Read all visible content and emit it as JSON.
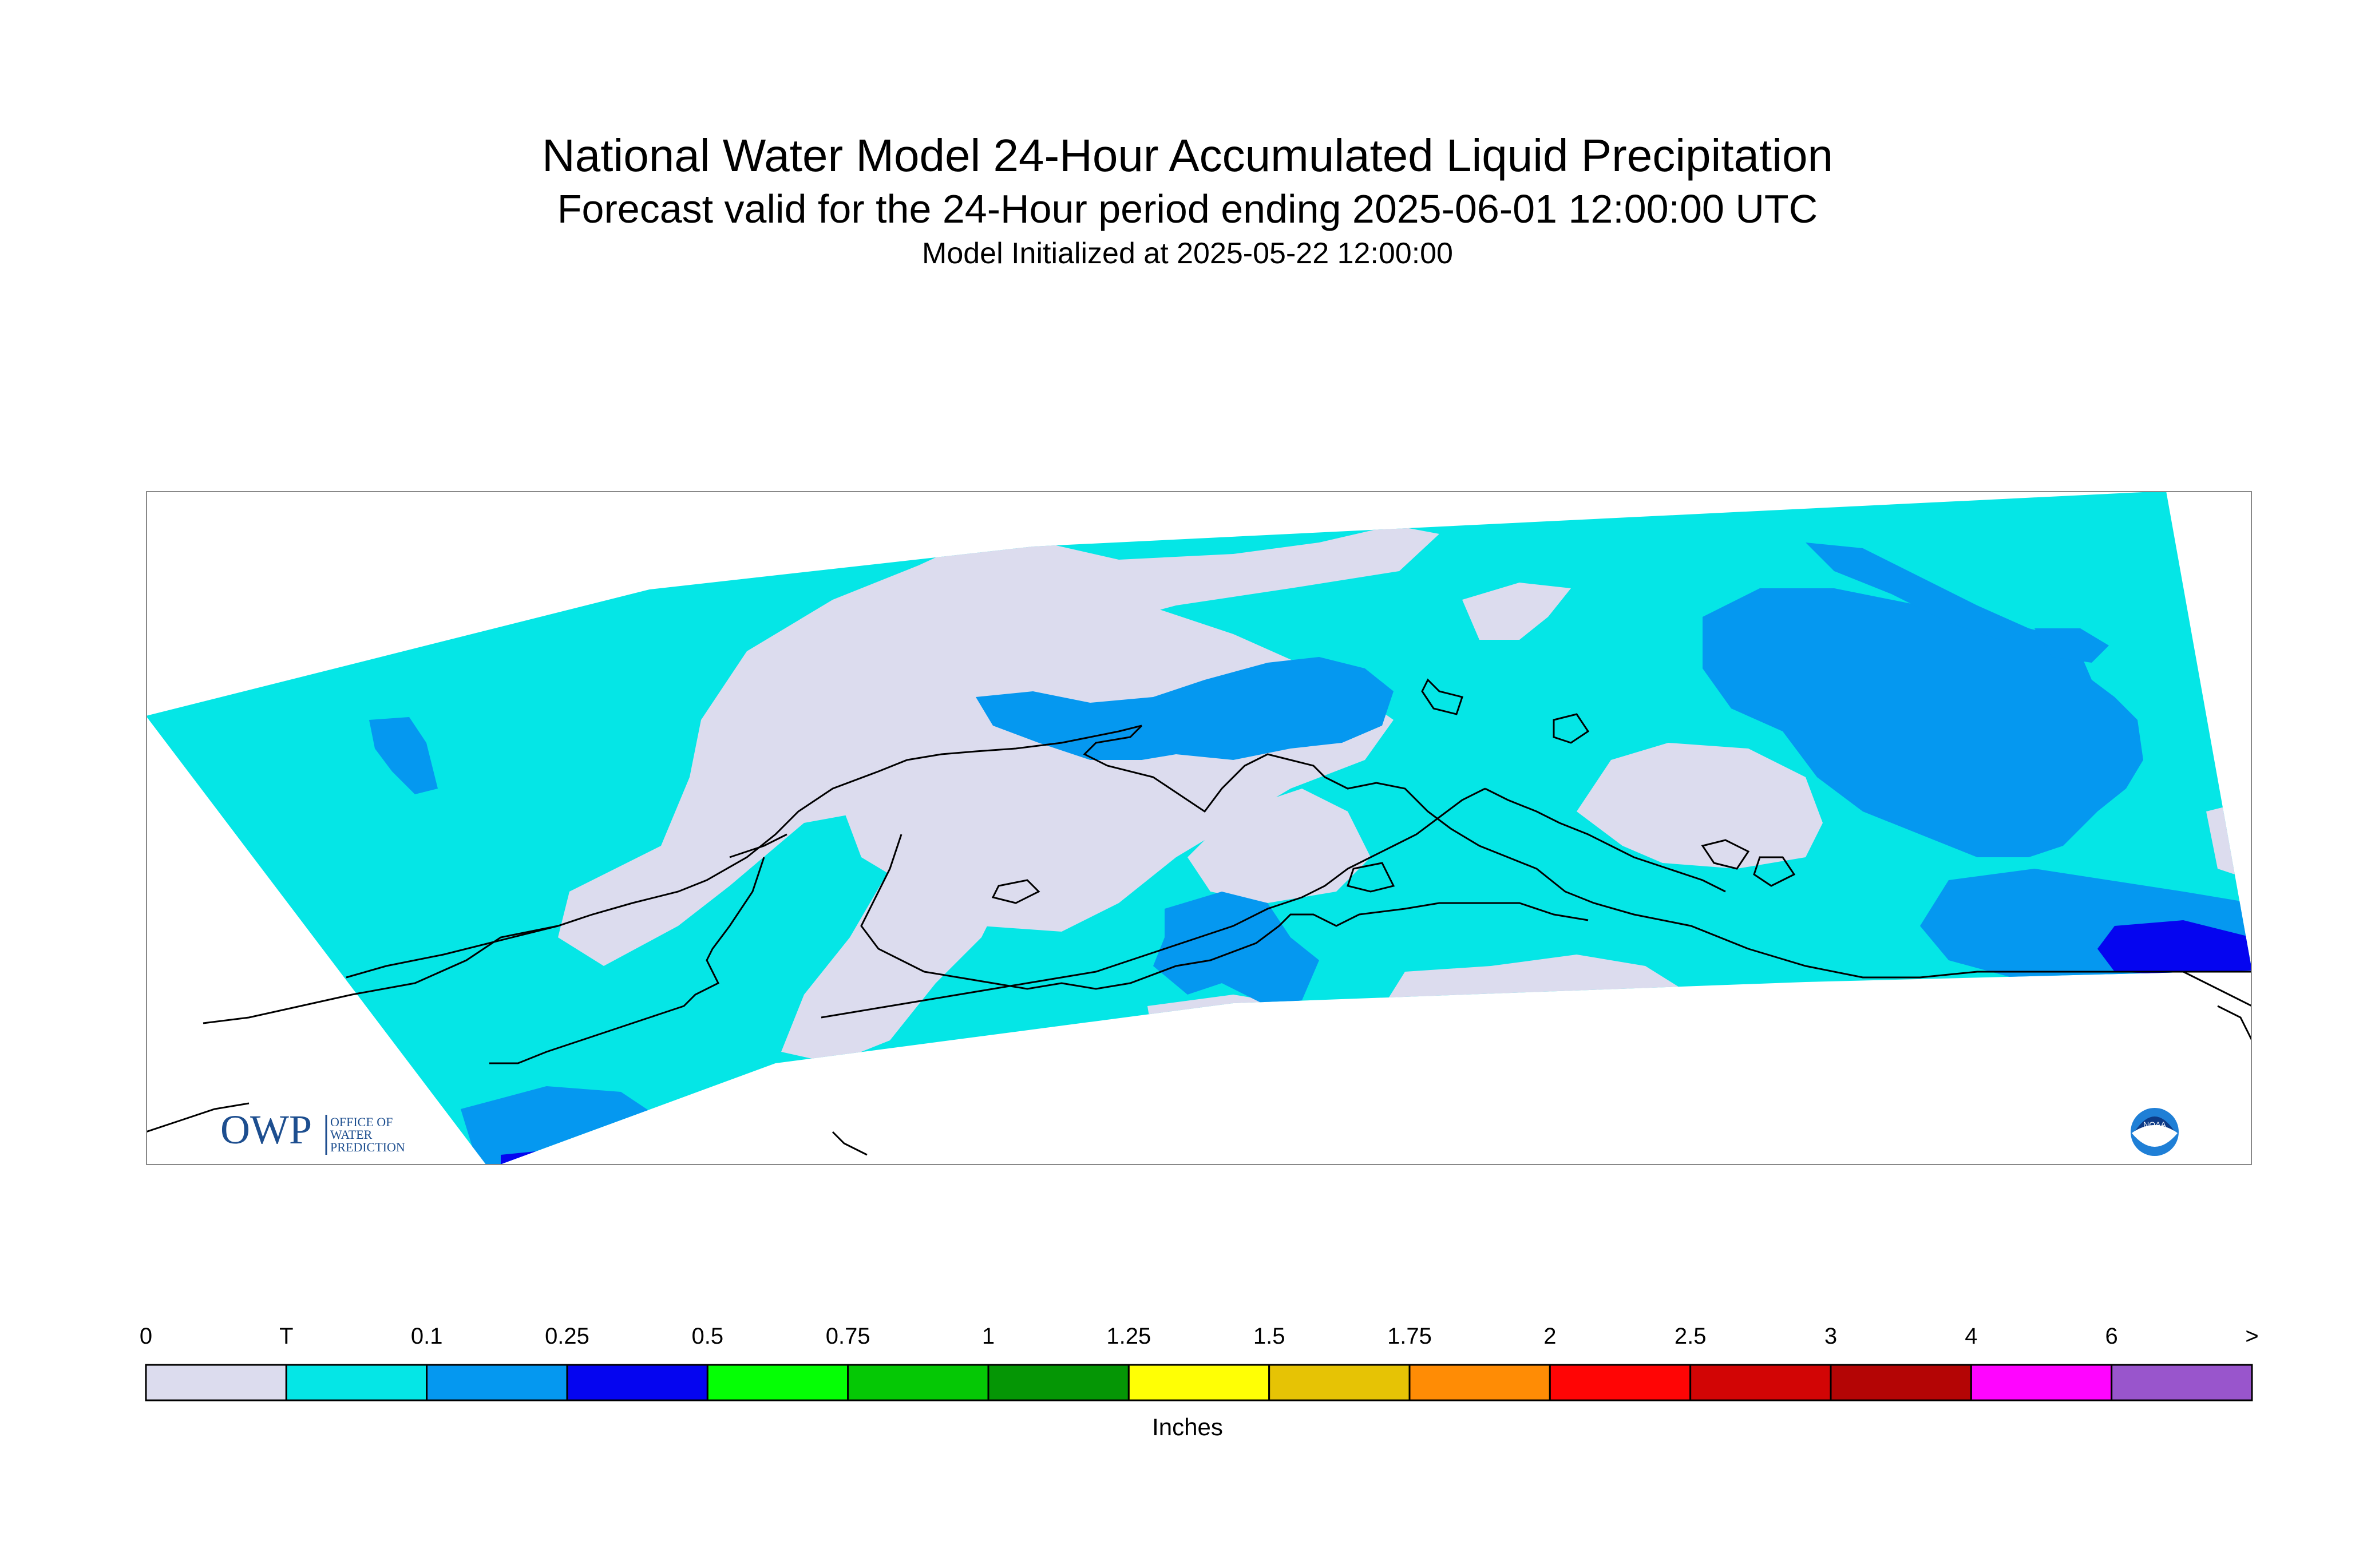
{
  "header": {
    "title": "National Water Model 24-Hour Accumulated Liquid Precipitation",
    "subtitle": "Forecast valid for the 24-Hour period ending 2025-06-01 12:00:00 UTC",
    "init_line": "Model Initialized at 2025-05-22 12:00:00"
  },
  "logos": {
    "owp_letters": "OWP",
    "owp_small": [
      "OFFICE OF",
      "WATER",
      "PREDICTION"
    ],
    "noaa_text": "NOAA"
  },
  "legend": {
    "units": "Inches",
    "labels": [
      "0",
      "T",
      "0.1",
      "0.25",
      "0.5",
      "0.75",
      "1",
      "1.25",
      "1.5",
      "1.75",
      "2",
      "2.5",
      "3",
      "4",
      "6",
      ">"
    ],
    "bins": [
      {
        "color": "#dcdcee"
      },
      {
        "color": "#05e6e6"
      },
      {
        "color": "#0598f0"
      },
      {
        "color": "#0505f0"
      },
      {
        "color": "#05ff05"
      },
      {
        "color": "#05c805"
      },
      {
        "color": "#059605"
      },
      {
        "color": "#ffff05"
      },
      {
        "color": "#e6c305"
      },
      {
        "color": "#ff8c05"
      },
      {
        "color": "#ff0505"
      },
      {
        "color": "#d20505"
      },
      {
        "color": "#b40505"
      },
      {
        "color": "#ff05ff"
      },
      {
        "color": "#9955cc"
      }
    ]
  },
  "map": {
    "colors": {
      "zero": "#dcdcee",
      "trace": "#05e6e6",
      "tenth": "#0598f0",
      "quarter": "#0505f0",
      "coast": "#000000",
      "frame": "#888888"
    }
  }
}
